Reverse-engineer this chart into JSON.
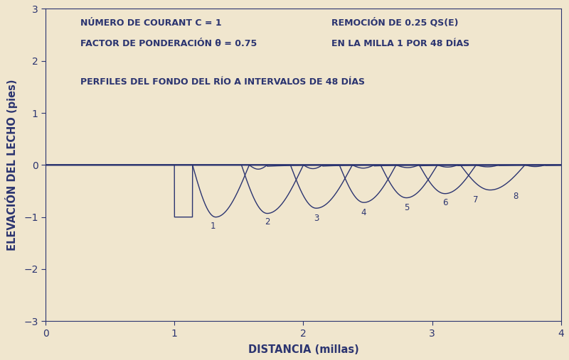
{
  "xlabel": "DISTANCIA (millas)",
  "ylabel": "ELEVACIÓN DEL LECHO (pies)",
  "xlim": [
    0,
    4
  ],
  "ylim": [
    -3,
    3
  ],
  "xticks": [
    0,
    1,
    2,
    3,
    4
  ],
  "yticks": [
    -3,
    -2,
    -1,
    0,
    1,
    2,
    3
  ],
  "bg_color": "#f0e6ce",
  "line_color": "#2b3470",
  "text_color": "#2b3470",
  "text1_line1": "NÚMERO DE COURANT C = 1",
  "text1_line2": "FACTOR DE PONDERACIÓN θ = 0.75",
  "text2_line1": "REMOCIÓN DE 0.25 QS(E)",
  "text2_line2": "EN LA MILLA 1 POR 48 DÍAS",
  "text3": "PERFILES DEL FONDO DEL RÍO A INTERVALOS DE 48 DÍAS",
  "figsize": [
    8.0,
    5.07
  ],
  "dpi": 100
}
